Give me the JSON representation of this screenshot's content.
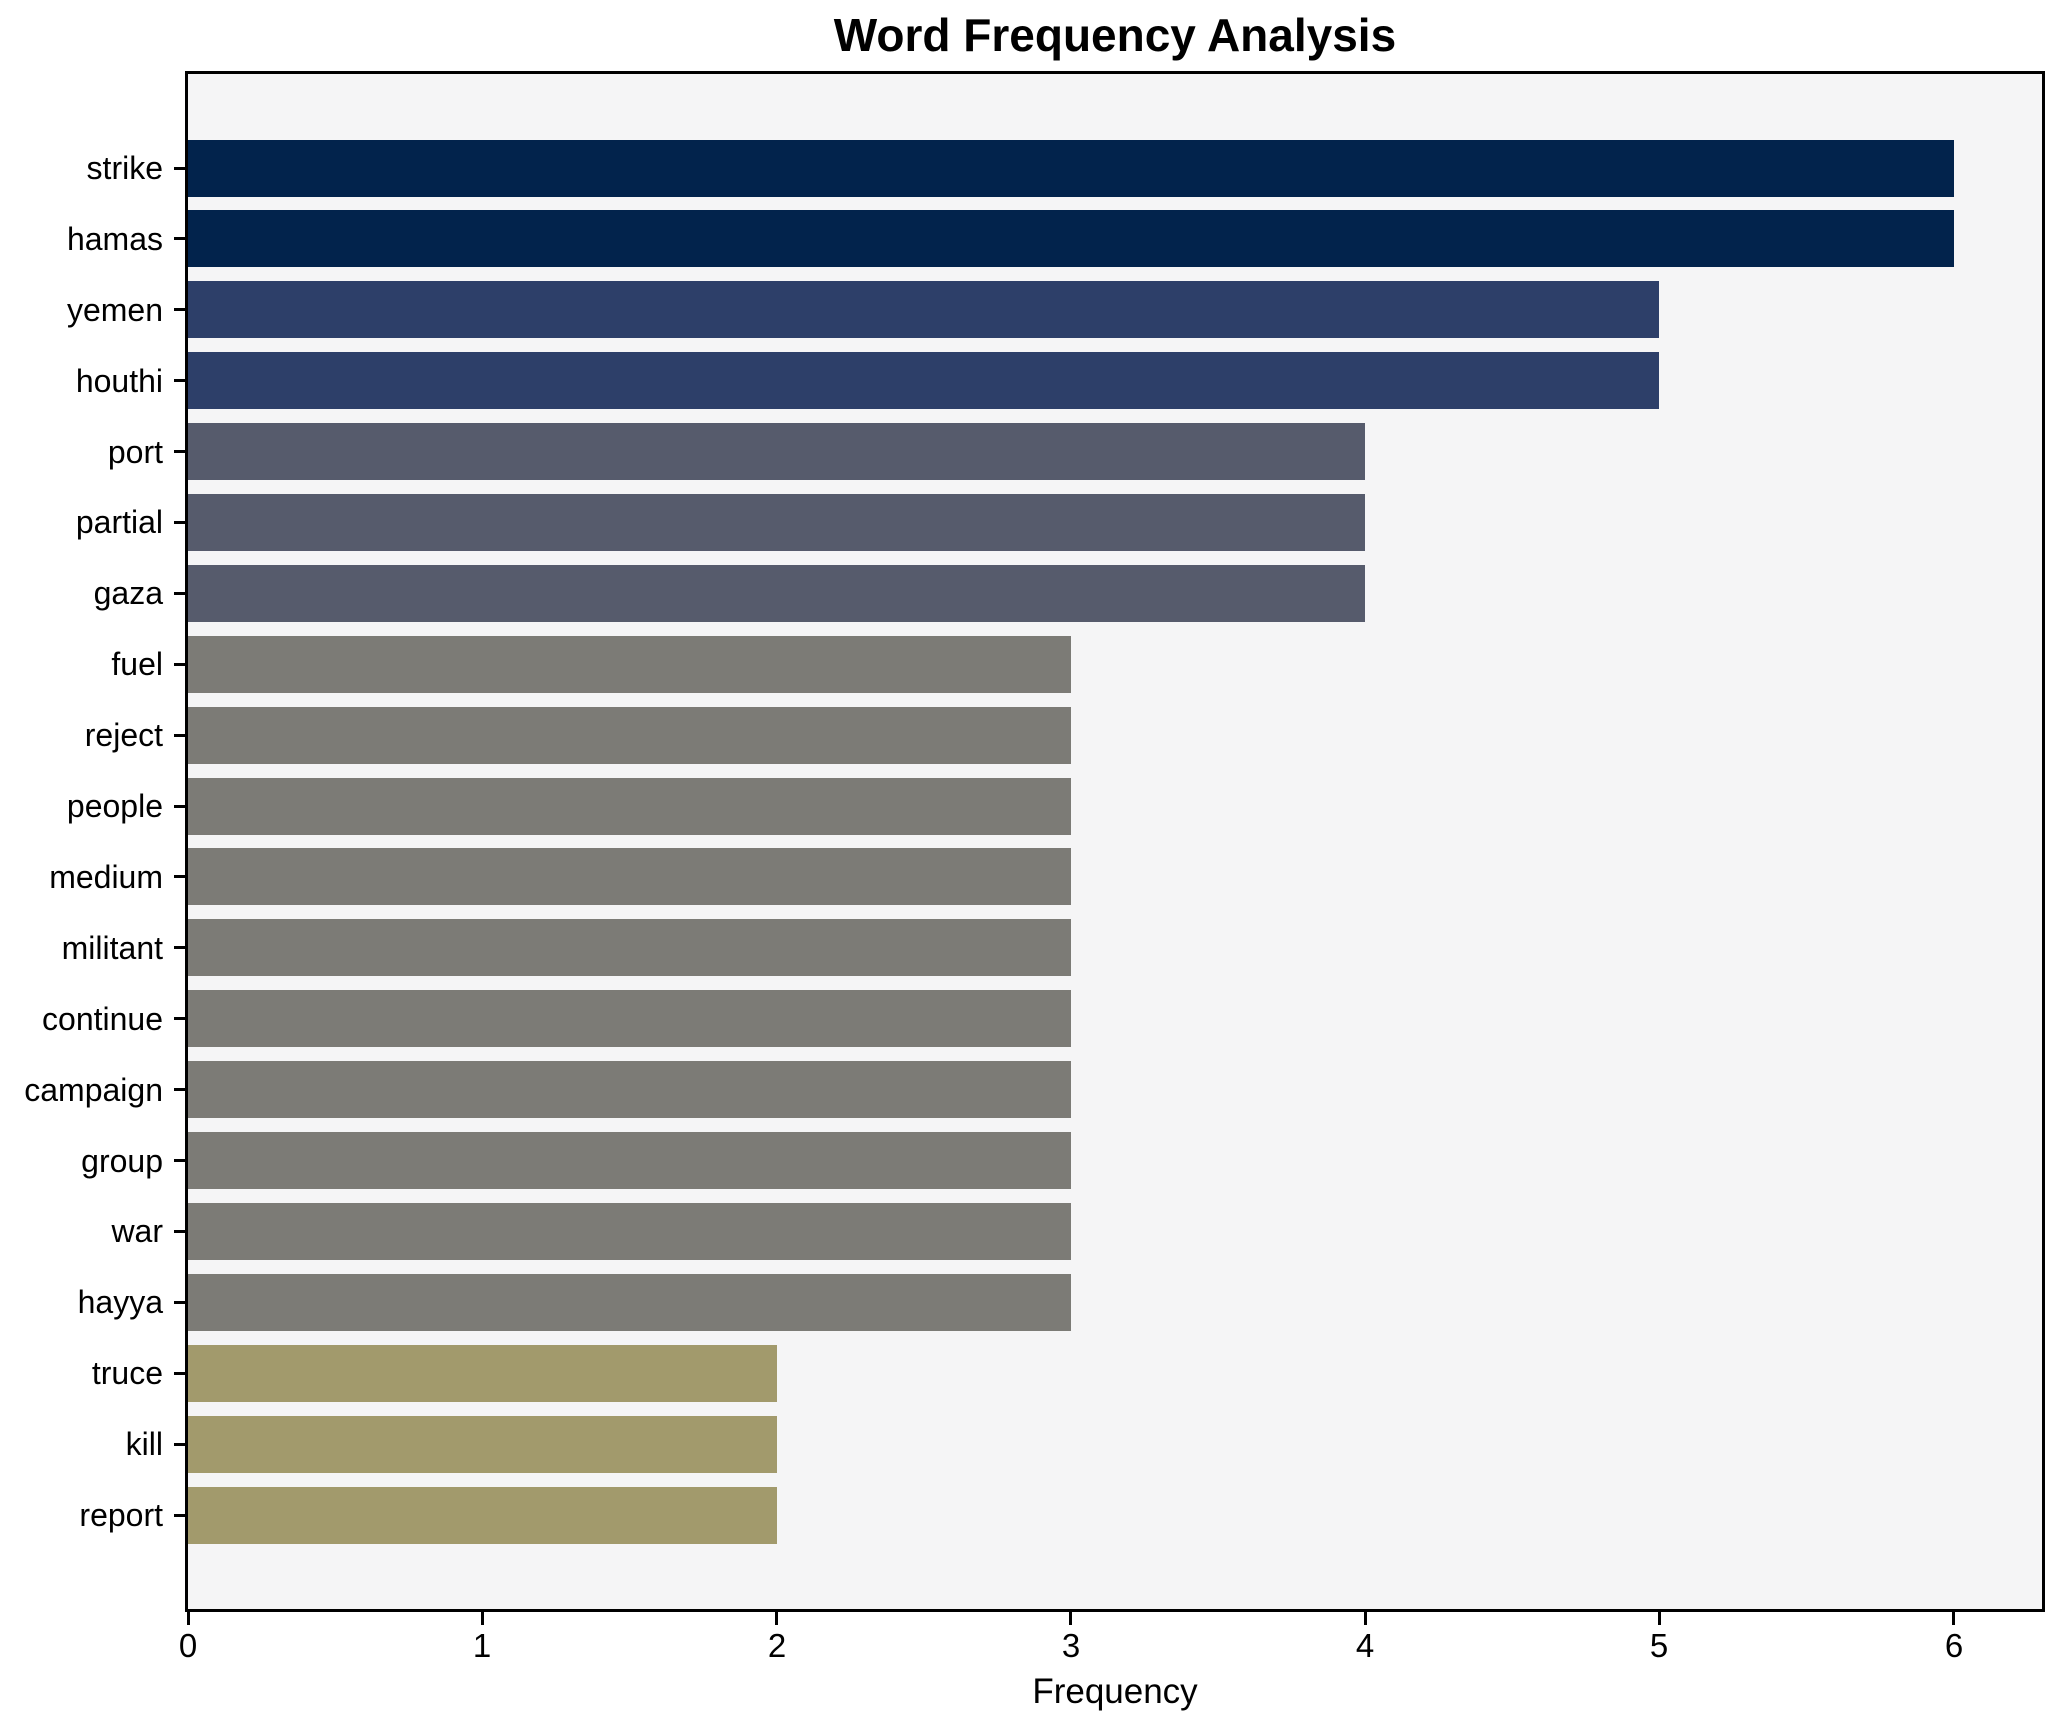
{
  "chart_data": {
    "type": "bar",
    "orientation": "horizontal",
    "title": "Word Frequency Analysis",
    "xlabel": "Frequency",
    "ylabel": "",
    "categories": [
      "strike",
      "hamas",
      "yemen",
      "houthi",
      "port",
      "partial",
      "gaza",
      "fuel",
      "reject",
      "people",
      "medium",
      "militant",
      "continue",
      "campaign",
      "group",
      "war",
      "hayya",
      "truce",
      "kill",
      "report"
    ],
    "values": [
      6,
      6,
      5,
      5,
      4,
      4,
      4,
      3,
      3,
      3,
      3,
      3,
      3,
      3,
      3,
      3,
      3,
      2,
      2,
      2
    ],
    "bar_colors": [
      "#02234c",
      "#02234c",
      "#2d3f69",
      "#2d3f69",
      "#565b6c",
      "#565b6c",
      "#565b6c",
      "#7c7b76",
      "#7c7b76",
      "#7c7b76",
      "#7c7b76",
      "#7c7b76",
      "#7c7b76",
      "#7c7b76",
      "#7c7b76",
      "#7c7b76",
      "#7c7b76",
      "#a29a6c",
      "#a29a6c",
      "#a29a6c"
    ],
    "xticks": [
      0,
      1,
      2,
      3,
      4,
      5,
      6
    ],
    "xlim": [
      0,
      6.3
    ],
    "grid": false,
    "legend": null,
    "plot_background": "#f5f5f6",
    "outer_background": "#ffffff",
    "frame_color": "#000000"
  }
}
